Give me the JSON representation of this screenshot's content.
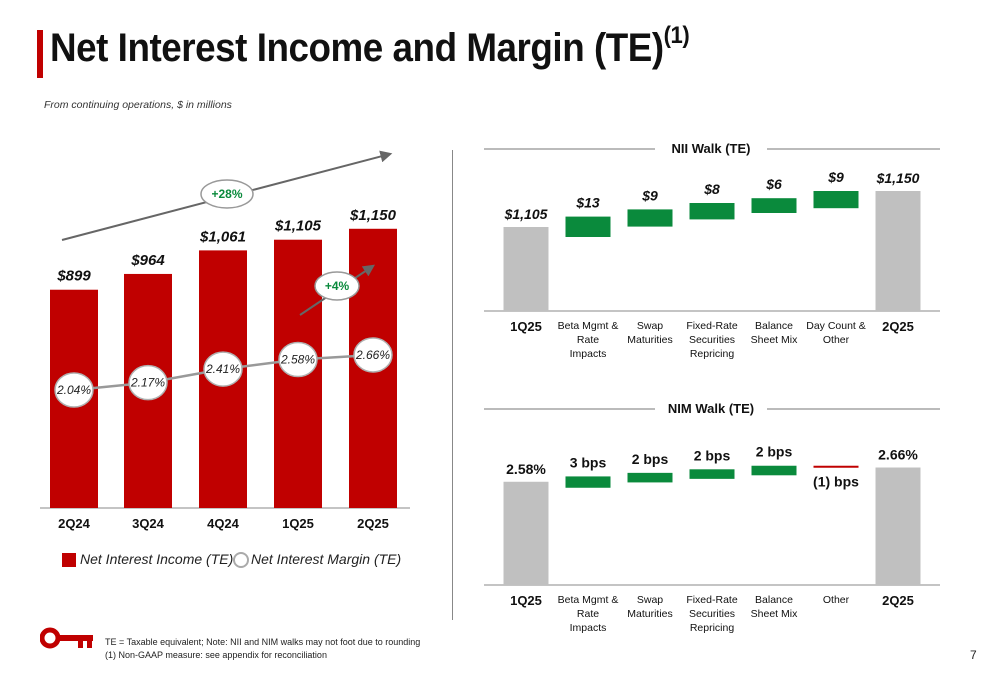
{
  "page": {
    "title": "Net Interest Income and Margin (TE)",
    "title_sup": "(1)",
    "subtitle": "From continuing operations, $ in millions",
    "page_number": "7",
    "footnotes": [
      "TE = Taxable equivalent; Note: NII and NIM walks may not foot due to rounding",
      "(1) Non-GAAP measure: see appendix for reconciliation"
    ],
    "logo_icon": "key-icon"
  },
  "colors": {
    "red": "#c00000",
    "green": "#0a8a3c",
    "gray": "#c0c0c0",
    "lineGray": "#999999"
  },
  "chart_data": [
    {
      "type": "bar",
      "categories": [
        "2Q24",
        "3Q24",
        "4Q24",
        "1Q25",
        "2Q25"
      ],
      "series": [
        {
          "name": "Net Interest Income (TE)",
          "values": [
            899,
            964,
            1061,
            1105,
            1150
          ],
          "labels": [
            "$899",
            "$964",
            "$1,061",
            "$1,105",
            "$1,150"
          ]
        },
        {
          "name": "Net Interest Margin (TE)",
          "values": [
            2.04,
            2.17,
            2.41,
            2.58,
            2.66
          ],
          "labels": [
            "2.04%",
            "2.17%",
            "2.41%",
            "2.58%",
            "2.66%"
          ]
        }
      ],
      "annotations": [
        "+28%",
        "+4%"
      ],
      "legend": [
        "Net Interest Income (TE)",
        "Net Interest Margin (TE)"
      ],
      "legend_position": "bottom-left"
    },
    {
      "type": "bar",
      "title": "NII Walk (TE)",
      "categories": [
        "1Q25",
        "Beta Mgmt & Rate Impacts",
        "Swap Maturities",
        "Fixed-Rate Securities Repricing",
        "Balance Sheet Mix",
        "Day Count & Other",
        "2Q25"
      ],
      "values": [
        1105,
        13,
        9,
        8,
        6,
        9,
        1150
      ],
      "labels": [
        "$1,105",
        "$13",
        "$9",
        "$8",
        "$6",
        "$9",
        "$1,150"
      ],
      "kinds": [
        "total",
        "inc",
        "inc",
        "inc",
        "inc",
        "inc",
        "total"
      ]
    },
    {
      "type": "bar",
      "title": "NIM Walk (TE)",
      "categories": [
        "1Q25",
        "Beta Mgmt & Rate Impacts",
        "Swap Maturities",
        "Fixed-Rate Securities Repricing",
        "Balance Sheet Mix",
        "Other",
        "2Q25"
      ],
      "values": [
        2.58,
        3,
        2,
        2,
        2,
        -1,
        2.66
      ],
      "labels": [
        "2.58%",
        "3 bps",
        "2 bps",
        "2 bps",
        "2 bps",
        "(1) bps",
        "2.66%"
      ],
      "kinds": [
        "total",
        "inc",
        "inc",
        "inc",
        "inc",
        "dec",
        "total"
      ]
    }
  ]
}
